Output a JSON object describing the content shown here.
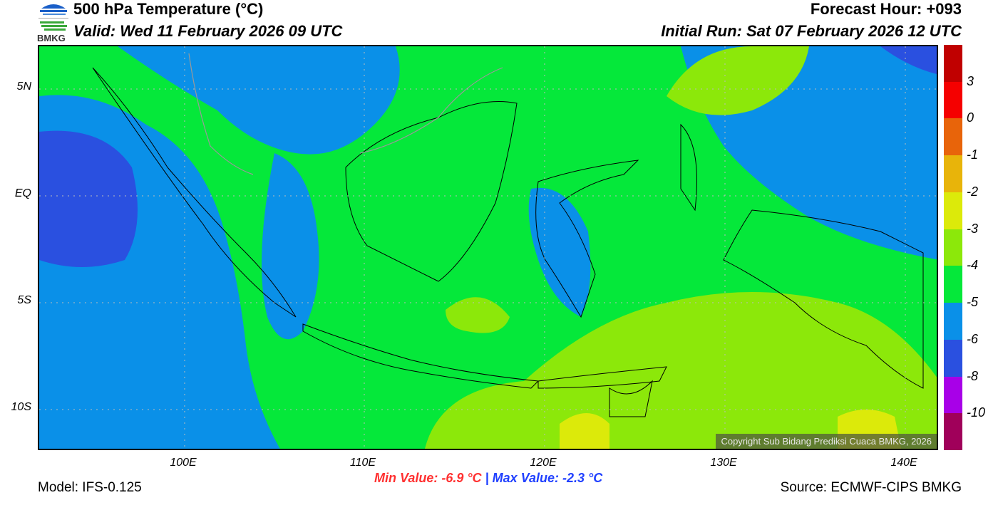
{
  "header": {
    "title": "500 hPa Temperature (°C)",
    "valid": "Valid: Wed 11 February 2026 09 UTC",
    "forecast_hour": "Forecast Hour: +093",
    "initial_run": "Initial Run: Sat 07 February 2026 12 UTC",
    "logo_text": "BMKG"
  },
  "map": {
    "lat_labels": [
      "5N",
      "EQ",
      "5S",
      "10S"
    ],
    "lon_labels": [
      "100E",
      "110E",
      "120E",
      "130E",
      "140E"
    ],
    "copyright": "Copyright Sub Bidang Prediksi Cuaca BMKG, 2026",
    "field_colors": {
      "green": "#05e83a",
      "blue": "#0a90e8",
      "dark_blue": "#2a50e0",
      "yellow_green": "#8ce80a",
      "yellow": "#dcea0a"
    }
  },
  "colorbar": {
    "labels": [
      "3",
      "0",
      "-1",
      "-2",
      "-3",
      "-4",
      "-5",
      "-6",
      "-8",
      "-10"
    ],
    "colors": [
      "#c00000",
      "#f50000",
      "#e8640a",
      "#e8b40a",
      "#dcea0a",
      "#8ce80a",
      "#05e83a",
      "#0a90e8",
      "#2a50e0",
      "#a800e8",
      "#a0005a"
    ]
  },
  "footer": {
    "model": "Model: IFS-0.125",
    "min_value": "Min Value: -6.9 °C",
    "separator": "|",
    "max_value": "Max Value: -2.3 °C",
    "source": "Source: ECMWF-CIPS BMKG",
    "min_color": "#ff3030",
    "max_color": "#2040ff"
  }
}
